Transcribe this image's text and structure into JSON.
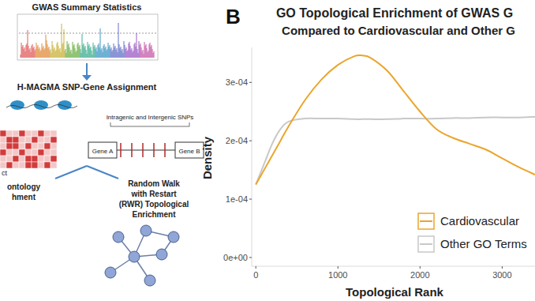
{
  "chart_data": {
    "type": "line",
    "panel_label": "B",
    "title": "GO Topological Enrichment of GWAS G",
    "subtitle": "Compared to Cardiovascular and Other G",
    "x_label": "Topological Rank",
    "y_label": "Density",
    "x": [
      0,
      100,
      200,
      300,
      400,
      600,
      800,
      1000,
      1200,
      1300,
      1400,
      1600,
      1800,
      2000,
      2200,
      2400,
      2600,
      2800,
      3000,
      3200,
      3400
    ],
    "series": [
      {
        "name": "Cardiovascular",
        "color": "#eba52c",
        "values": [
          0.000125,
          0.00015,
          0.000175,
          0.0002,
          0.000225,
          0.00027,
          0.000305,
          0.00033,
          0.000345,
          0.000346,
          0.000342,
          0.00032,
          0.000285,
          0.00025,
          0.00022,
          0.000205,
          0.000195,
          0.000185,
          0.00017,
          0.000155,
          0.000142
        ]
      },
      {
        "name": "Other GO Terms",
        "color": "#c8c8c8",
        "values": [
          0.000125,
          0.00016,
          0.000195,
          0.00022,
          0.000233,
          0.000238,
          0.000238,
          0.000238,
          0.000237,
          0.000237,
          0.000237,
          0.000237,
          0.000238,
          0.000238,
          0.000238,
          0.000239,
          0.000239,
          0.00024,
          0.00024,
          0.00024,
          0.000241
        ]
      }
    ],
    "xlim": [
      -50,
      3400
    ],
    "xticks": [
      0,
      1000,
      2000,
      3000
    ],
    "ylim": [
      -1.5e-05,
      0.00036
    ],
    "yticks": [
      {
        "value": 0,
        "label": "0e+00"
      },
      {
        "value": 0.0001,
        "label": "1e-04"
      },
      {
        "value": 0.0002,
        "label": "2e-04"
      },
      {
        "value": 0.0003,
        "label": "3e-04"
      }
    ],
    "grid": false,
    "legend": "bottom-right"
  },
  "diagram": {
    "gwas_title": "GWAS Summary Statistics",
    "hmagma_title": "H-MAGMA SNP-Gene Assignment",
    "snp_note": "Intragenic and Intergenic SNPs",
    "gene_a": "Gene A",
    "gene_b": "Gene B",
    "matrix_caption": "ct",
    "ontology_lines": [
      "ontology",
      "hment"
    ],
    "rwr_lines": [
      "Random Walk",
      "with Restart",
      "(RWR) Topological",
      "Enrichment"
    ]
  }
}
